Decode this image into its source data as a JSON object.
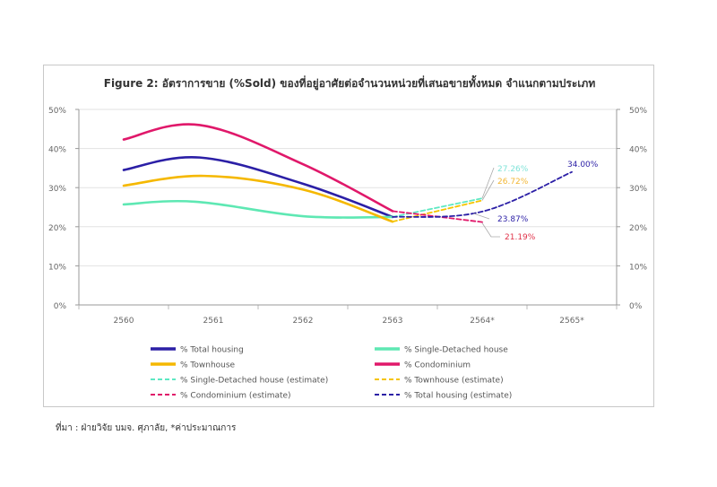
{
  "source_note": "ที่มา : ฝ่ายวิจัย บมจ. ศุภาลัย, *ค่าประมาณการ",
  "chart_data": {
    "type": "line",
    "title": "Figure 2: อัตราการขาย (%Sold) ของที่อยู่อาศัยต่อจำนวนหน่วยที่เสนอขายทั้งหมด จำแนกตามประเภท",
    "categories": [
      "2560",
      "2561",
      "2562",
      "2563",
      "2564*",
      "2565*"
    ],
    "ylim": [
      0,
      50
    ],
    "yticks": [
      "0%",
      "10%",
      "20%",
      "30%",
      "40%",
      "50%"
    ],
    "secondary_yticks": [
      "0%",
      "10%",
      "20%",
      "30%",
      "40%",
      "50%"
    ],
    "series": [
      {
        "name": "% Total housing",
        "color": "#2b1fa6",
        "dash": false,
        "points": [
          [
            0,
            34.5
          ],
          [
            0.85,
            37.7
          ],
          [
            2,
            31.0
          ],
          [
            3,
            22.5
          ]
        ]
      },
      {
        "name": "% Single-Detached house",
        "color": "#5ee8b3",
        "dash": false,
        "points": [
          [
            0,
            25.7
          ],
          [
            0.8,
            26.4
          ],
          [
            2,
            22.7
          ],
          [
            3,
            22.5
          ]
        ]
      },
      {
        "name": "% Townhouse",
        "color": "#f5b800",
        "dash": false,
        "points": [
          [
            0,
            30.5
          ],
          [
            0.9,
            33.0
          ],
          [
            2,
            29.5
          ],
          [
            3,
            21.3
          ]
        ]
      },
      {
        "name": "% Condominium",
        "color": "#e0186a",
        "dash": false,
        "points": [
          [
            0,
            42.3
          ],
          [
            0.85,
            46.0
          ],
          [
            2,
            36.0
          ],
          [
            3,
            24.0
          ]
        ]
      },
      {
        "name": "% Single-Detached house (estimate)",
        "color": "#5ee8c3",
        "dash": true,
        "points": [
          [
            3,
            22.5
          ],
          [
            4,
            27.26
          ]
        ]
      },
      {
        "name": "% Townhouse (estimate)",
        "color": "#f5c400",
        "dash": true,
        "points": [
          [
            3,
            21.3
          ],
          [
            4,
            26.72
          ]
        ]
      },
      {
        "name": "% Condominium (estimate)",
        "color": "#e0186a",
        "dash": true,
        "points": [
          [
            3,
            24.0
          ],
          [
            4,
            21.19
          ]
        ]
      },
      {
        "name": "% Total housing (estimate)",
        "color": "#2b1fa6",
        "dash": true,
        "points": [
          [
            3,
            22.5
          ],
          [
            4,
            23.87
          ],
          [
            5,
            34.0
          ]
        ]
      }
    ],
    "annotations": [
      {
        "text": "27.26%",
        "color": "#7fe3d8"
      },
      {
        "text": "26.72%",
        "color": "#f2b634"
      },
      {
        "text": "23.87%",
        "color": "#2b1fa6"
      },
      {
        "text": "21.19%",
        "color": "#e0334a"
      },
      {
        "text": "34.00%",
        "color": "#2b1fa6"
      }
    ],
    "legend": {
      "placement": "bottom",
      "columns": 2,
      "order": [
        0,
        1,
        2,
        3,
        4,
        5,
        6,
        7
      ]
    },
    "grid": true
  }
}
